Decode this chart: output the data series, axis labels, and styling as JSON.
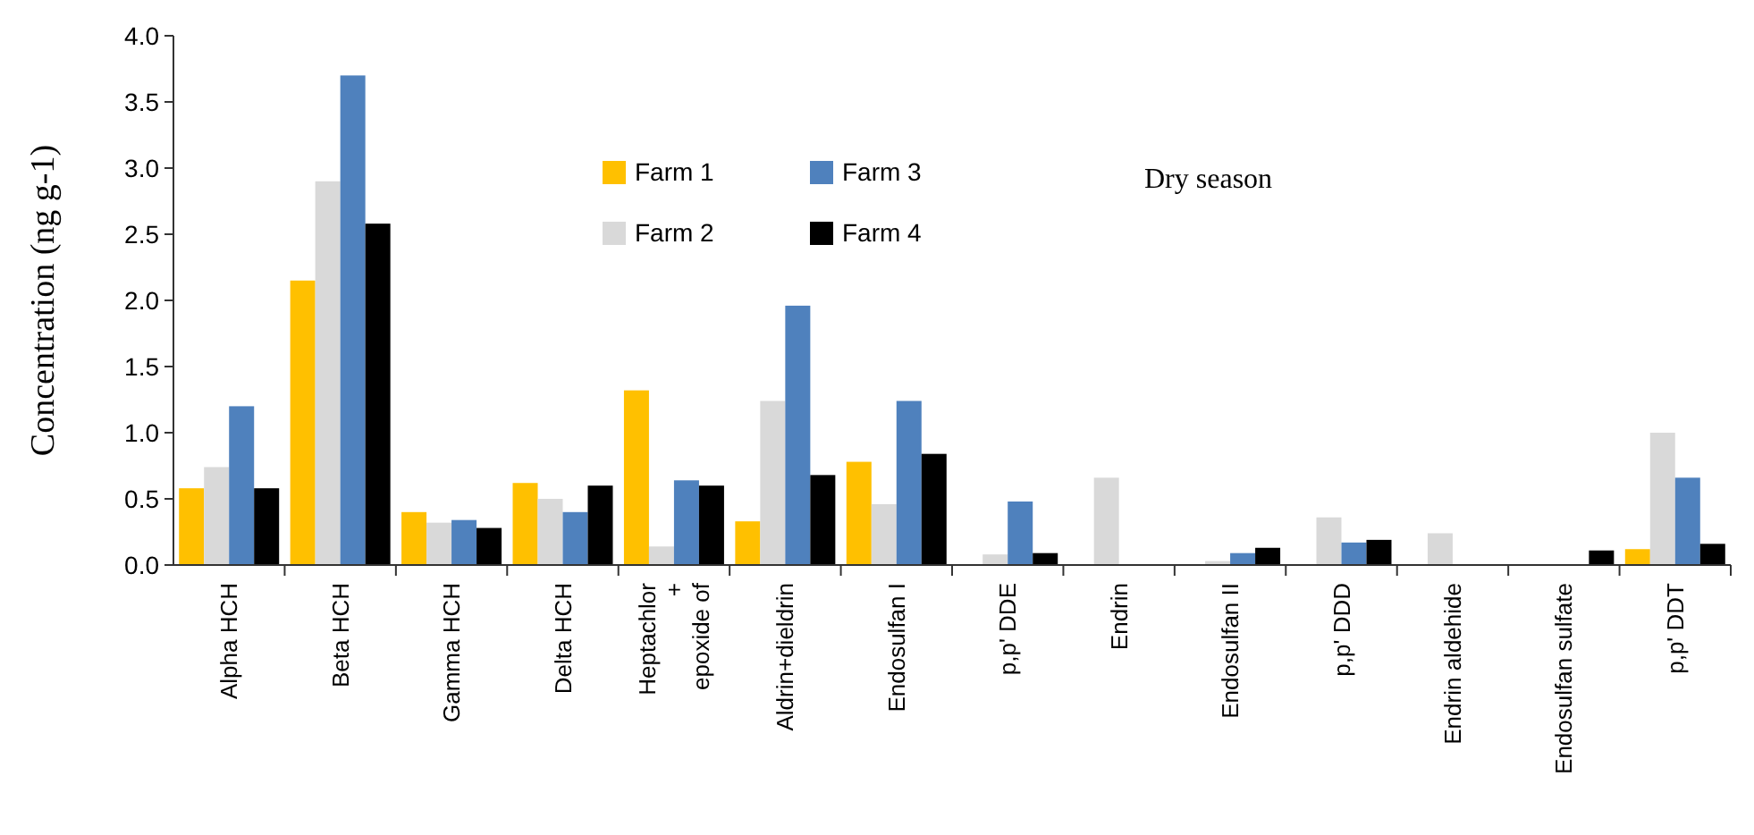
{
  "chart_data": {
    "type": "bar",
    "ylabel": "Concentration (ng g-1)",
    "annotations": [
      "Dry season"
    ],
    "categories": [
      "Alpha HCH",
      "Beta HCH",
      "Gamma  HCH",
      "Delta HCH",
      "Heptachlor\n+\nepoxide of",
      "Aldrin+dieldrin",
      "Endosulfan I",
      "p,p' DDE",
      "Endrin",
      "Endosulfan II",
      "p,p' DDD",
      "Endrin aldehide",
      "Endosulfan sulfate",
      "p,p' DDT"
    ],
    "series": [
      {
        "name": "Farm 1",
        "color": "#ffc000",
        "values": [
          0.58,
          2.15,
          0.4,
          0.62,
          1.32,
          0.33,
          0.78,
          0,
          0,
          0,
          0,
          0,
          0,
          0.12
        ]
      },
      {
        "name": "Farm 2",
        "color": "#d9d9d9",
        "values": [
          0.74,
          2.9,
          0.32,
          0.5,
          0.14,
          1.24,
          0.46,
          0.08,
          0.66,
          0.03,
          0.36,
          0.24,
          0,
          1.0
        ]
      },
      {
        "name": "Farm 3",
        "color": "#4f81bd",
        "values": [
          1.2,
          3.7,
          0.34,
          0.4,
          0.64,
          1.96,
          1.24,
          0.48,
          0,
          0.09,
          0.17,
          0,
          0,
          0.66
        ]
      },
      {
        "name": "Farm 4",
        "color": "#000000",
        "values": [
          0.58,
          2.58,
          0.28,
          0.6,
          0.6,
          0.68,
          0.84,
          0.09,
          0,
          0.13,
          0.19,
          0,
          0.11,
          0.16
        ]
      }
    ],
    "ylim": [
      0,
      4
    ],
    "yticks": [
      {
        "value": 0,
        "label": "0.0"
      },
      {
        "value": 0.5,
        "label": "0.5"
      },
      {
        "value": 1,
        "label": "1.0"
      },
      {
        "value": 1.5,
        "label": "1.5"
      },
      {
        "value": 2,
        "label": "2.0"
      },
      {
        "value": 2.5,
        "label": "2.5"
      },
      {
        "value": 3,
        "label": "3.0"
      },
      {
        "value": 3.5,
        "label": "3.5"
      },
      {
        "value": 4,
        "label": "4.0"
      }
    ],
    "grid": false,
    "legend": "top"
  }
}
